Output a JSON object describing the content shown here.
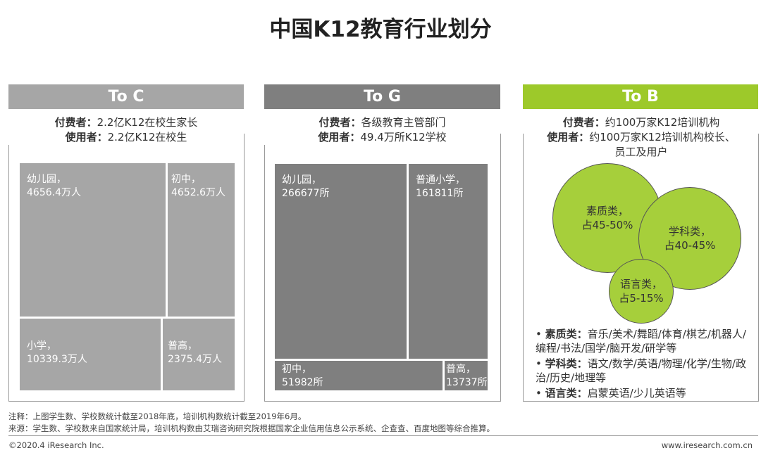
{
  "title": "中国K12教育行业划分",
  "columns": [
    {
      "header": "To C",
      "payer_label": "付费者：",
      "payer": "2.2亿K12在校生家长",
      "user_label": "使用者：",
      "user": "2.2亿K12在校生",
      "cells": [
        {
          "name": "幼儿园，",
          "value": "4656.4万人"
        },
        {
          "name": "初中，",
          "value": "4652.6万人"
        },
        {
          "name": "小学，",
          "value": "10339.3万人"
        },
        {
          "name": "普高，",
          "value": "2375.4万人"
        }
      ]
    },
    {
      "header": "To G",
      "payer_label": "付费者：",
      "payer": "各级教育主管部门",
      "user_label": "使用者：",
      "user": "49.4万所K12学校",
      "cells": [
        {
          "name": "幼儿园，",
          "value": "266677所"
        },
        {
          "name": "普通小学，",
          "value": "161811所"
        },
        {
          "name": "初中，",
          "value": "51982所"
        },
        {
          "name": "普高，",
          "value": "13737所"
        }
      ]
    },
    {
      "header": "To B",
      "payer_label": "付费者：",
      "payer": "约100万家K12培训机构",
      "user_label": "使用者：",
      "user": "约100万家K12培训机构校长、员工及用户",
      "circles": [
        {
          "name": "素质类，",
          "value": "占45-50%"
        },
        {
          "name": "学科类，",
          "value": "占40-45%"
        },
        {
          "name": "语言类，",
          "value": "占5-15%"
        }
      ],
      "bullets": [
        {
          "label": "素质类：",
          "text": "音乐/美术/舞蹈/体育/棋艺/机器人/编程/书法/国学/脑开发/研学等"
        },
        {
          "label": "学科类：",
          "text": "语文/数学/英语/物理/化学/生物/政治/历史/地理等"
        },
        {
          "label": "语言类：",
          "text": "启蒙英语/少儿英语等"
        }
      ]
    }
  ],
  "footer": {
    "note": "注释：上图学生数、学校数统计截至2018年底，培训机构数统计截至2019年6月。",
    "source": "来源：学生数、学校数来自国家统计局，培训机构数由艾瑞咨询研究院根据国家企业信用信息公示系统、企查查、百度地图等综合推算。",
    "copyright": "©2020.4 iResearch Inc.",
    "website": "www.iresearch.com.cn"
  }
}
